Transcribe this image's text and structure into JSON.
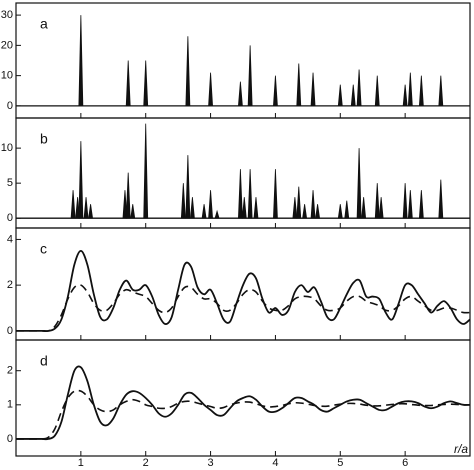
{
  "chart_data": [
    {
      "type": "peaks",
      "label": "a",
      "xlim": [
        0,
        7
      ],
      "ylim": [
        -4,
        34
      ],
      "yticks": [
        0,
        10,
        20,
        30
      ],
      "x": [
        1.0,
        1.73,
        2.0,
        2.65,
        3.0,
        3.46,
        3.61,
        4.0,
        4.36,
        4.58,
        5.0,
        5.2,
        5.29,
        5.57,
        6.0,
        6.08,
        6.25,
        6.55
      ],
      "values": [
        30,
        15,
        15,
        23,
        11,
        8,
        20,
        10,
        14,
        11,
        7,
        7,
        12,
        10,
        7,
        11,
        10,
        10
      ],
      "color": "#111111"
    },
    {
      "type": "peaks",
      "label": "b",
      "xlim": [
        0,
        7
      ],
      "ylim": [
        -1.4,
        14.3
      ],
      "yticks": [
        0,
        5,
        10
      ],
      "x": [
        0.88,
        0.95,
        1.0,
        1.08,
        1.15,
        1.68,
        1.73,
        1.8,
        2.0,
        2.58,
        2.65,
        2.72,
        2.9,
        3.0,
        3.1,
        3.46,
        3.52,
        3.61,
        3.7,
        4.0,
        4.3,
        4.36,
        4.45,
        4.58,
        4.65,
        5.0,
        5.1,
        5.29,
        5.36,
        5.57,
        5.63,
        6.0,
        6.08,
        6.25,
        6.55
      ],
      "values": [
        4,
        3,
        11,
        3,
        2,
        4,
        6.5,
        2,
        13.5,
        5,
        9,
        3,
        2,
        4,
        1,
        7,
        3,
        7,
        3,
        7,
        3,
        4.5,
        2,
        4,
        2,
        2,
        2.5,
        10,
        3,
        5,
        3,
        5,
        4,
        4,
        5.5
      ],
      "color": "#111111"
    },
    {
      "type": "line",
      "label": "c",
      "xlim": [
        0,
        7
      ],
      "ylim": [
        -0.4,
        4.5
      ],
      "yticks": [
        0,
        2,
        4
      ],
      "x": [
        0,
        0.1,
        0.2,
        0.3,
        0.4,
        0.5,
        0.6,
        0.7,
        0.8,
        0.9,
        1.0,
        1.1,
        1.2,
        1.3,
        1.4,
        1.5,
        1.6,
        1.7,
        1.8,
        1.9,
        2.0,
        2.1,
        2.2,
        2.3,
        2.4,
        2.5,
        2.6,
        2.7,
        2.8,
        2.9,
        3.0,
        3.1,
        3.2,
        3.3,
        3.4,
        3.5,
        3.6,
        3.7,
        3.8,
        3.9,
        4.0,
        4.1,
        4.2,
        4.3,
        4.4,
        4.5,
        4.6,
        4.7,
        4.8,
        4.9,
        5.0,
        5.1,
        5.2,
        5.3,
        5.4,
        5.5,
        5.6,
        5.7,
        5.8,
        5.9,
        6.0,
        6.1,
        6.2,
        6.3,
        6.4,
        6.5,
        6.6,
        6.7,
        6.8,
        6.9,
        7.0
      ],
      "series": [
        {
          "color": "#111111",
          "dashed": false,
          "values": [
            0,
            0,
            0,
            0,
            0,
            0,
            0.1,
            0.5,
            1.5,
            2.9,
            3.5,
            2.9,
            1.6,
            0.6,
            0.5,
            1.0,
            1.8,
            2.2,
            1.8,
            1.8,
            2.0,
            1.5,
            0.7,
            0.3,
            0.6,
            1.8,
            2.9,
            2.8,
            1.9,
            1.6,
            1.8,
            1.2,
            0.5,
            0.4,
            1.2,
            2.0,
            2.5,
            2.3,
            1.4,
            0.8,
            1.0,
            0.7,
            0.9,
            1.7,
            2.0,
            1.7,
            1.9,
            1.3,
            0.6,
            0.5,
            1.0,
            1.6,
            2.1,
            2.2,
            1.5,
            1.5,
            1.4,
            0.8,
            0.5,
            1.2,
            2.0,
            2.0,
            1.6,
            1.2,
            0.8,
            1.1,
            1.3,
            1.0,
            0.5,
            0.3,
            0.5
          ]
        },
        {
          "color": "#111111",
          "dashed": true,
          "values": [
            0,
            0,
            0,
            0,
            0,
            0,
            0.2,
            0.7,
            1.4,
            1.9,
            2.0,
            1.7,
            1.2,
            0.9,
            0.9,
            1.2,
            1.6,
            1.8,
            1.7,
            1.6,
            1.5,
            1.2,
            0.9,
            0.8,
            1.0,
            1.5,
            1.9,
            1.9,
            1.6,
            1.4,
            1.4,
            1.2,
            0.9,
            0.9,
            1.2,
            1.6,
            1.8,
            1.7,
            1.3,
            1.0,
            0.9,
            0.9,
            1.1,
            1.4,
            1.5,
            1.5,
            1.4,
            1.1,
            0.9,
            0.9,
            1.0,
            1.3,
            1.5,
            1.5,
            1.3,
            1.2,
            1.1,
            0.9,
            0.9,
            1.1,
            1.4,
            1.5,
            1.3,
            1.1,
            0.9,
            0.9,
            1.0,
            1.0,
            0.9,
            0.8,
            0.8
          ]
        }
      ]
    },
    {
      "type": "line",
      "label": "d",
      "xlim": [
        0,
        7
      ],
      "ylim": [
        -0.5,
        2.9
      ],
      "yticks": [
        0,
        1,
        2
      ],
      "xticks": [
        1,
        2,
        3,
        4,
        5,
        6
      ],
      "xlabel": "r/a",
      "x": [
        0,
        0.1,
        0.2,
        0.3,
        0.4,
        0.5,
        0.6,
        0.7,
        0.8,
        0.9,
        1.0,
        1.1,
        1.2,
        1.3,
        1.4,
        1.5,
        1.6,
        1.7,
        1.8,
        1.9,
        2.0,
        2.1,
        2.2,
        2.3,
        2.4,
        2.5,
        2.6,
        2.7,
        2.8,
        2.9,
        3.0,
        3.1,
        3.2,
        3.3,
        3.4,
        3.5,
        3.6,
        3.7,
        3.8,
        3.9,
        4.0,
        4.1,
        4.2,
        4.3,
        4.4,
        4.5,
        4.6,
        4.7,
        4.8,
        4.9,
        5.0,
        5.1,
        5.2,
        5.3,
        5.4,
        5.5,
        5.6,
        5.7,
        5.8,
        5.9,
        6.0,
        6.1,
        6.2,
        6.3,
        6.4,
        6.5,
        6.6,
        6.7,
        6.8,
        6.9,
        7.0
      ],
      "series": [
        {
          "color": "#111111",
          "dashed": false,
          "values": [
            0,
            0,
            0,
            0,
            0,
            0,
            0.1,
            0.5,
            1.3,
            2.0,
            2.1,
            1.7,
            1.0,
            0.5,
            0.4,
            0.6,
            1.0,
            1.3,
            1.4,
            1.35,
            1.2,
            1.0,
            0.75,
            0.65,
            0.75,
            1.0,
            1.3,
            1.35,
            1.2,
            1.0,
            0.85,
            0.7,
            0.7,
            0.9,
            1.1,
            1.2,
            1.25,
            1.15,
            0.95,
            0.8,
            0.8,
            0.9,
            1.05,
            1.2,
            1.2,
            1.1,
            1.0,
            0.85,
            0.8,
            0.9,
            1.0,
            1.1,
            1.15,
            1.15,
            1.05,
            0.95,
            0.85,
            0.85,
            0.95,
            1.05,
            1.1,
            1.1,
            1.05,
            0.95,
            0.9,
            0.95,
            1.05,
            1.1,
            1.05,
            1.0,
            1.0
          ]
        },
        {
          "color": "#111111",
          "dashed": true,
          "values": [
            0,
            0,
            0,
            0,
            0,
            0.05,
            0.3,
            0.8,
            1.2,
            1.4,
            1.4,
            1.25,
            1.0,
            0.85,
            0.8,
            0.85,
            1.0,
            1.1,
            1.15,
            1.1,
            1.0,
            0.95,
            0.9,
            0.9,
            0.95,
            1.05,
            1.1,
            1.1,
            1.05,
            1.0,
            0.95,
            0.9,
            0.92,
            1.0,
            1.05,
            1.08,
            1.08,
            1.03,
            0.97,
            0.94,
            0.95,
            0.98,
            1.03,
            1.06,
            1.05,
            1.02,
            0.98,
            0.96,
            0.96,
            0.99,
            1.02,
            1.04,
            1.04,
            1.02,
            0.99,
            0.97,
            0.97,
            0.99,
            1.01,
            1.03,
            1.03,
            1.01,
            0.99,
            0.98,
            0.98,
            1.0,
            1.01,
            1.02,
            1.01,
            1.0,
            1.0
          ]
        }
      ]
    }
  ]
}
